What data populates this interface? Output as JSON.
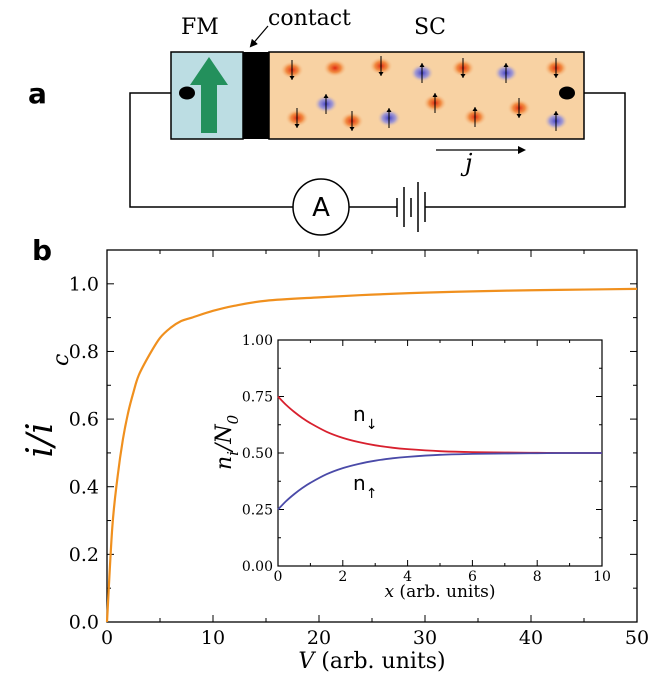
{
  "panel_a": {
    "label": "a",
    "fm_label": "FM",
    "contact_label": "contact",
    "sc_label": "SC",
    "current_label": "j",
    "ammeter_label": "A",
    "colors": {
      "fm_fill": "#bcdde3",
      "sc_fill": "#f8d2a3",
      "contact_fill": "#000000",
      "arrow_fill": "#23905c",
      "spin_up_carrier": "#7070d8",
      "spin_down_carrier": "#e0542a"
    }
  },
  "panel_b": {
    "label": "b"
  },
  "chart_data": [
    {
      "id": "main",
      "type": "line",
      "xlabel_italic": "V",
      "xlabel_rest": " (arb. units)",
      "ylabel_main": "i/i",
      "ylabel_sub": "c",
      "xlim": [
        0,
        50
      ],
      "ylim": [
        0,
        1.1
      ],
      "xticks": [
        0,
        10,
        20,
        30,
        40,
        50
      ],
      "yticks": [
        0.0,
        0.2,
        0.4,
        0.6,
        0.8,
        1.0
      ],
      "ytick_labels": [
        "0.0",
        "0.2",
        "0.4",
        "0.6",
        "0.8",
        "1.0"
      ],
      "series": [
        {
          "color": "#f0901e",
          "x": [
            0,
            0.5,
            1,
            1.5,
            2,
            2.5,
            3,
            4,
            5,
            6,
            7,
            8,
            10,
            12,
            15,
            20,
            25,
            30,
            35,
            40,
            45,
            50
          ],
          "y": [
            0.0,
            0.28,
            0.43,
            0.54,
            0.62,
            0.68,
            0.73,
            0.79,
            0.84,
            0.87,
            0.89,
            0.9,
            0.92,
            0.935,
            0.95,
            0.96,
            0.968,
            0.974,
            0.978,
            0.981,
            0.983,
            0.985
          ]
        }
      ]
    },
    {
      "id": "inset",
      "type": "line",
      "xlabel_italic": "x",
      "xlabel_rest": " (arb. units)",
      "ylabel_main": "n",
      "ylabel_sub": "i",
      "ylabel_rest": "/N",
      "ylabel_sub2": "0",
      "xlim": [
        0,
        10
      ],
      "ylim": [
        0,
        1
      ],
      "xticks": [
        0,
        2,
        4,
        6,
        8,
        10
      ],
      "yticks": [
        0.0,
        0.25,
        0.5,
        0.75,
        1.0
      ],
      "ytick_labels": [
        "0.00",
        "0.25",
        "0.50",
        "0.75",
        "1.00"
      ],
      "series": [
        {
          "name": "n",
          "arrow": "↓",
          "color": "#d8202e",
          "x": [
            0,
            0.25,
            0.5,
            0.75,
            1,
            1.5,
            2,
            2.5,
            3,
            3.5,
            4,
            5,
            6,
            7,
            8,
            9,
            10
          ],
          "y": [
            0.75,
            0.713,
            0.682,
            0.655,
            0.632,
            0.594,
            0.567,
            0.548,
            0.534,
            0.524,
            0.517,
            0.508,
            0.504,
            0.502,
            0.501,
            0.5,
            0.5
          ]
        },
        {
          "name": "n",
          "arrow": "↑",
          "color": "#4a4aa8",
          "x": [
            0,
            0.25,
            0.5,
            0.75,
            1,
            1.5,
            2,
            2.5,
            3,
            3.5,
            4,
            5,
            6,
            7,
            8,
            9,
            10
          ],
          "y": [
            0.25,
            0.287,
            0.318,
            0.345,
            0.368,
            0.406,
            0.433,
            0.452,
            0.466,
            0.476,
            0.483,
            0.492,
            0.496,
            0.498,
            0.499,
            0.5,
            0.5
          ]
        }
      ]
    }
  ]
}
